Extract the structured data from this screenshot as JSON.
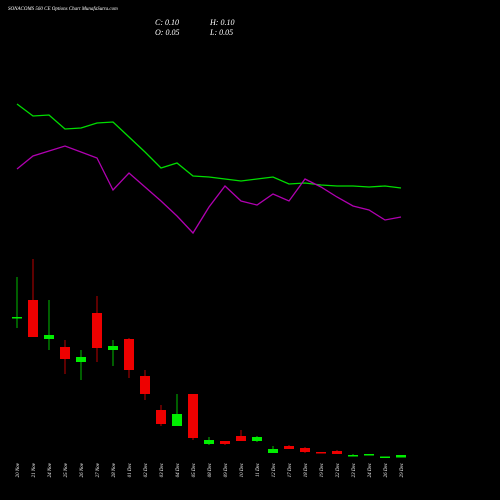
{
  "chart_data": {
    "type": "candlestick",
    "title": "SONACOMS 560  CE Options Chart MunafaSutra.com",
    "info": [
      "C: 0.10",
      "H: 0.10",
      "O: 0.05",
      "L: 0.05"
    ],
    "categories": [
      "20 Nov",
      "21 Nov",
      "24 Nov",
      "25 Nov",
      "26 Nov",
      "27 Nov",
      "28 Nov",
      "01 Dec",
      "02 Dec",
      "03 Dec",
      "04 Dec",
      "05 Dec",
      "08 Dec",
      "09 Dec",
      "10 Dec",
      "11 Dec",
      "12 Dec",
      "17 Dec",
      "18 Dec",
      "19 Dec",
      "22 Dec",
      "23 Dec",
      "24 Dec",
      "26 Dec",
      "29 Dec"
    ],
    "open": [
      2.84,
      3.2,
      2.42,
      2.26,
      1.96,
      2.94,
      2.2,
      2.42,
      1.68,
      1.0,
      0.68,
      1.32,
      0.32,
      0.38,
      0.48,
      0.38,
      0.14,
      0.28,
      0.24,
      0.16,
      0.18,
      0.08,
      0.1,
      0.06,
      0.05
    ],
    "high": [
      3.66,
      4.02,
      3.2,
      2.4,
      2.2,
      3.28,
      2.4,
      2.44,
      1.8,
      1.1,
      1.32,
      1.32,
      0.46,
      0.38,
      0.6,
      0.48,
      0.28,
      0.3,
      0.26,
      0.16,
      0.2,
      0.12,
      0.12,
      0.07,
      0.1
    ],
    "low": [
      2.64,
      2.46,
      2.2,
      1.72,
      1.6,
      1.96,
      1.88,
      1.64,
      1.2,
      0.68,
      0.68,
      0.4,
      0.3,
      0.3,
      0.38,
      0.36,
      0.14,
      0.22,
      0.14,
      0.14,
      0.12,
      0.08,
      0.1,
      0.06,
      0.05
    ],
    "close": [
      2.86,
      2.46,
      2.5,
      2.02,
      2.06,
      2.24,
      2.28,
      1.8,
      1.32,
      0.72,
      0.92,
      0.44,
      0.4,
      0.32,
      0.38,
      0.46,
      0.22,
      0.22,
      0.16,
      0.14,
      0.12,
      0.1,
      0.12,
      0.07,
      0.1
    ],
    "up_color": "#00ee00",
    "down_color": "#ee0000",
    "ylim": [
      0,
      9.2
    ],
    "lines": [
      {
        "color": "#00dd00",
        "axis": "y2",
        "values": [
          19.6,
          18.4,
          18.5,
          17.1,
          17.2,
          17.7,
          17.8,
          16.3,
          14.8,
          13.2,
          13.7,
          12.4,
          12.3,
          12.1,
          11.9,
          12.1,
          12.3,
          11.6,
          11.7,
          11.5,
          11.4,
          11.4,
          11.3,
          11.4,
          11.2
        ]
      },
      {
        "color": "#b000b0",
        "axis": "y2",
        "values": [
          13.1,
          14.4,
          14.9,
          15.4,
          14.8,
          14.2,
          11.0,
          12.7,
          11.3,
          9.9,
          8.4,
          6.7,
          9.3,
          11.4,
          9.9,
          9.5,
          10.6,
          9.9,
          12.1,
          11.3,
          10.3,
          9.4,
          9.0,
          8.0,
          8.3
        ]
      }
    ],
    "y2lim": [
      0,
      30
    ]
  }
}
